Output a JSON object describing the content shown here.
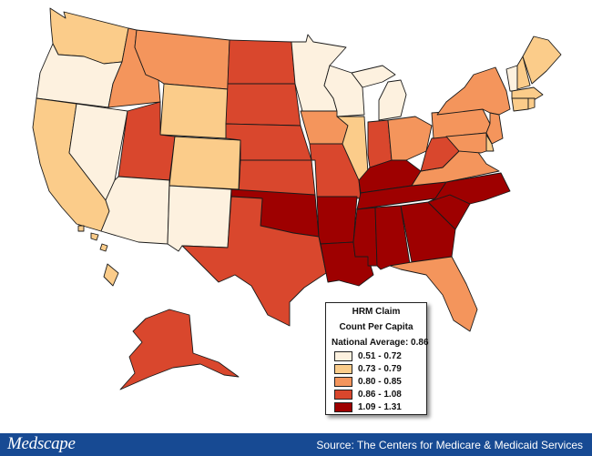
{
  "legend": {
    "title": "HRM Claim",
    "subtitle": "Count Per Capita",
    "national_average": "National Average: 0.86",
    "bins": [
      {
        "label": "0.51 - 0.72",
        "color": "#fdf1df"
      },
      {
        "label": "0.73 - 0.79",
        "color": "#fbcc8a"
      },
      {
        "label": "0.80 - 0.85",
        "color": "#f4955c"
      },
      {
        "label": "0.86 - 1.08",
        "color": "#d9472d"
      },
      {
        "label": "1.09 - 1.31",
        "color": "#9e0000"
      }
    ]
  },
  "states": {
    "WA": 2,
    "OR": 1,
    "CA": 2,
    "NV": 1,
    "ID": 3,
    "MT": 3,
    "WY": 2,
    "UT": 4,
    "AZ": 1,
    "CO": 2,
    "NM": 1,
    "ND": 4,
    "SD": 4,
    "NE": 4,
    "KS": 4,
    "OK": 5,
    "TX": 4,
    "MN": 1,
    "IA": 3,
    "MO": 4,
    "AR": 5,
    "LA": 5,
    "WI": 1,
    "IL": 2,
    "MI": 1,
    "IN": 4,
    "OH": 3,
    "KY": 5,
    "TN": 5,
    "MS": 5,
    "AL": 5,
    "GA": 5,
    "FL": 3,
    "SC": 5,
    "NC": 5,
    "VA": 3,
    "WV": 4,
    "PA": 3,
    "NY": 3,
    "VT": 1,
    "NH": 2,
    "ME": 2,
    "MA": 2,
    "CT": 2,
    "RI": 2,
    "NJ": 3,
    "DE": 2,
    "MD": 3,
    "AK": 4,
    "HI": 2
  },
  "footer": {
    "logo": "Medscape",
    "source": "Source:  The Centers for Medicare & Medicaid Services"
  }
}
